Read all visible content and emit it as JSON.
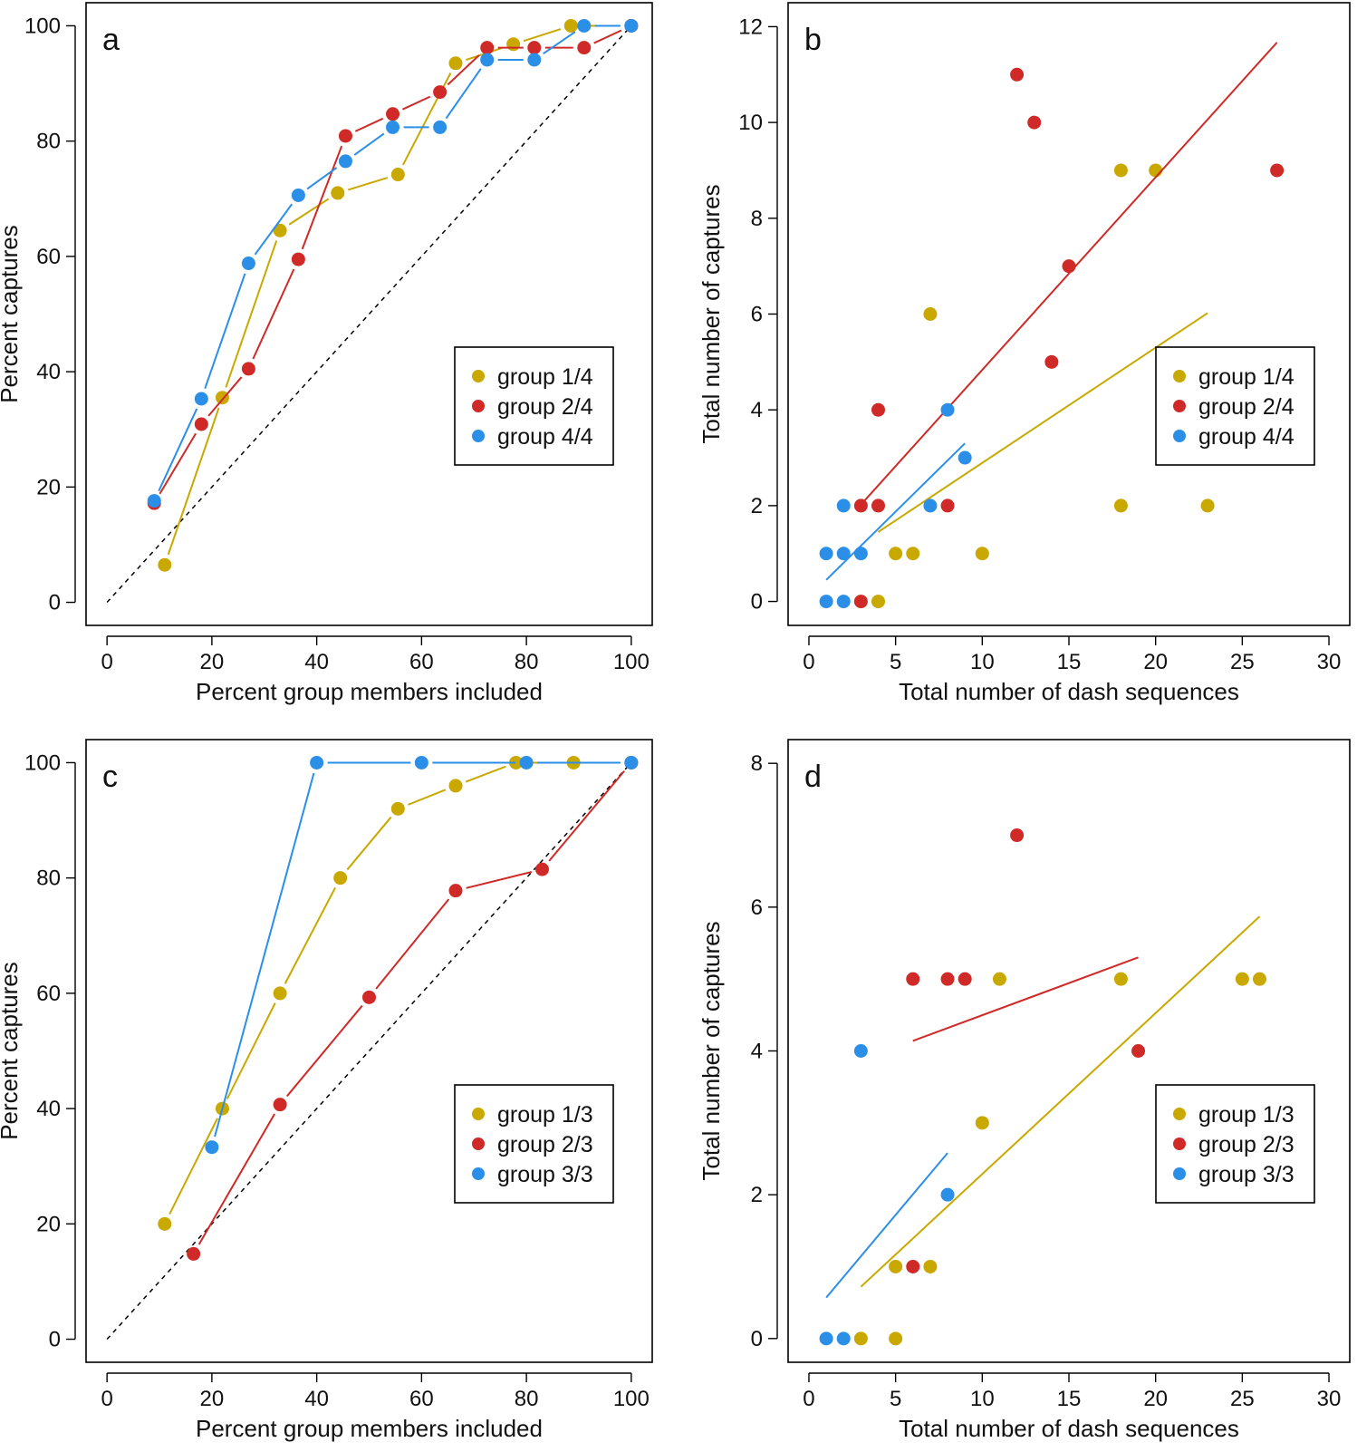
{
  "colors": {
    "gold": "#C9A800",
    "red": "#CF2A27",
    "blue": "#2B8FE8"
  },
  "chart_data": [
    {
      "id": "a",
      "letter": "a",
      "type": "line",
      "xlabel": "Percent group members included",
      "ylabel": "Percent captures",
      "xlim": [
        -4,
        104
      ],
      "ylim": [
        -4,
        104
      ],
      "xticks": [
        0,
        20,
        40,
        60,
        80,
        100
      ],
      "yticks": [
        0,
        20,
        40,
        60,
        80,
        100
      ],
      "reference_line": {
        "from": [
          0,
          0
        ],
        "to": [
          100,
          100
        ],
        "style": "dashed"
      },
      "series": [
        {
          "name": "group 1/4",
          "color": "gold",
          "x": [
            11,
            22,
            33,
            44,
            55.5,
            66.5,
            77.5,
            88.5,
            100
          ],
          "y": [
            6.5,
            35.5,
            64.5,
            71,
            74.2,
            93.5,
            96.8,
            100,
            100
          ]
        },
        {
          "name": "group 2/4",
          "color": "red",
          "x": [
            9,
            18,
            27,
            36.5,
            45.5,
            54.5,
            63.5,
            72.5,
            81.5,
            91,
            100
          ],
          "y": [
            17.2,
            30.9,
            40.5,
            59.5,
            80.9,
            84.7,
            88.5,
            96.2,
            96.2,
            96.2,
            100
          ]
        },
        {
          "name": "group 4/4",
          "color": "blue",
          "x": [
            9,
            18,
            27,
            36.5,
            45.5,
            54.5,
            63.5,
            72.5,
            81.5,
            91,
            100
          ],
          "y": [
            17.6,
            35.3,
            58.8,
            70.6,
            76.5,
            82.4,
            82.4,
            94.1,
            94.1,
            100,
            100
          ]
        }
      ],
      "legend": {
        "position": "right",
        "entries": [
          "group 1/4",
          "group 2/4",
          "group 4/4"
        ]
      }
    },
    {
      "id": "b",
      "letter": "b",
      "type": "scatter",
      "xlabel": "Total number of dash sequences",
      "ylabel": "Total number of captures",
      "xlim": [
        -1.2,
        31.2
      ],
      "ylim": [
        -0.5,
        12.5
      ],
      "xticks": [
        0,
        5,
        10,
        15,
        20,
        25,
        30
      ],
      "yticks": [
        0,
        2,
        4,
        6,
        8,
        10,
        12
      ],
      "series": [
        {
          "name": "group 1/4",
          "color": "gold",
          "points": [
            [
              4,
              0
            ],
            [
              5,
              1
            ],
            [
              6,
              1
            ],
            [
              7,
              6
            ],
            [
              10,
              1
            ],
            [
              18,
              9
            ],
            [
              20,
              9
            ],
            [
              18,
              2
            ],
            [
              23,
              2
            ]
          ],
          "fit": [
            [
              4,
              1.45
            ],
            [
              23,
              6.02
            ]
          ]
        },
        {
          "name": "group 2/4",
          "color": "red",
          "points": [
            [
              3,
              0
            ],
            [
              3,
              2
            ],
            [
              4,
              2
            ],
            [
              4,
              4
            ],
            [
              8,
              2
            ],
            [
              12,
              11
            ],
            [
              13,
              10
            ],
            [
              14,
              5
            ],
            [
              15,
              7
            ],
            [
              27,
              9
            ]
          ],
          "fit": [
            [
              3,
              2.02
            ],
            [
              27,
              11.67
            ]
          ]
        },
        {
          "name": "group 4/4",
          "color": "blue",
          "points": [
            [
              1,
              0
            ],
            [
              2,
              0
            ],
            [
              1,
              1
            ],
            [
              2,
              1
            ],
            [
              3,
              1
            ],
            [
              2,
              2
            ],
            [
              7,
              2
            ],
            [
              8,
              4
            ],
            [
              9,
              3
            ]
          ],
          "fit": [
            [
              1,
              0.45
            ],
            [
              9,
              3.3
            ]
          ]
        }
      ],
      "legend": {
        "position": "right",
        "entries": [
          "group 1/4",
          "group 2/4",
          "group 4/4"
        ]
      }
    },
    {
      "id": "c",
      "letter": "c",
      "type": "line",
      "xlabel": "Percent group members included",
      "ylabel": "Percent captures",
      "xlim": [
        -4,
        104
      ],
      "ylim": [
        -4,
        104
      ],
      "xticks": [
        0,
        20,
        40,
        60,
        80,
        100
      ],
      "yticks": [
        0,
        20,
        40,
        60,
        80,
        100
      ],
      "reference_line": {
        "from": [
          0,
          0
        ],
        "to": [
          100,
          100
        ],
        "style": "dashed"
      },
      "series": [
        {
          "name": "group 1/3",
          "color": "gold",
          "x": [
            11,
            22,
            33,
            44.5,
            55.5,
            66.5,
            78,
            89,
            100
          ],
          "y": [
            20,
            40,
            60,
            80,
            92,
            96,
            100,
            100,
            100
          ]
        },
        {
          "name": "group 2/3",
          "color": "red",
          "x": [
            16.5,
            33,
            50,
            66.5,
            83,
            100
          ],
          "y": [
            14.8,
            40.7,
            59.3,
            77.8,
            81.5,
            100
          ]
        },
        {
          "name": "group 3/3",
          "color": "blue",
          "x": [
            20,
            40,
            60,
            80,
            100
          ],
          "y": [
            33.3,
            100,
            100,
            100,
            100
          ]
        }
      ],
      "legend": {
        "position": "right",
        "entries": [
          "group 1/3",
          "group 2/3",
          "group 3/3"
        ]
      }
    },
    {
      "id": "d",
      "letter": "d",
      "type": "scatter",
      "xlabel": "Total number of dash sequences",
      "ylabel": "Total number of captures",
      "xlim": [
        -1.2,
        31.2
      ],
      "ylim": [
        -0.33,
        8.33
      ],
      "xticks": [
        0,
        5,
        10,
        15,
        20,
        25,
        30
      ],
      "yticks": [
        0,
        2,
        4,
        6,
        8
      ],
      "series": [
        {
          "name": "group 1/3",
          "color": "gold",
          "points": [
            [
              3,
              0
            ],
            [
              5,
              0
            ],
            [
              5,
              1
            ],
            [
              7,
              1
            ],
            [
              10,
              3
            ],
            [
              11,
              5
            ],
            [
              18,
              5
            ],
            [
              25,
              5
            ],
            [
              26,
              5
            ]
          ],
          "fit": [
            [
              3,
              0.72
            ],
            [
              26,
              5.87
            ]
          ]
        },
        {
          "name": "group 2/3",
          "color": "red",
          "points": [
            [
              6,
              1
            ],
            [
              6,
              5
            ],
            [
              8,
              5
            ],
            [
              9,
              5
            ],
            [
              12,
              7
            ],
            [
              19,
              4
            ]
          ],
          "fit": [
            [
              6,
              4.14
            ],
            [
              19,
              5.3
            ]
          ]
        },
        {
          "name": "group 3/3",
          "color": "blue",
          "points": [
            [
              1,
              0
            ],
            [
              2,
              0
            ],
            [
              3,
              4
            ],
            [
              8,
              2
            ]
          ],
          "fit": [
            [
              1,
              0.57
            ],
            [
              8,
              2.58
            ]
          ]
        }
      ],
      "legend": {
        "position": "right",
        "entries": [
          "group 1/3",
          "group 2/3",
          "group 3/3"
        ]
      }
    }
  ]
}
